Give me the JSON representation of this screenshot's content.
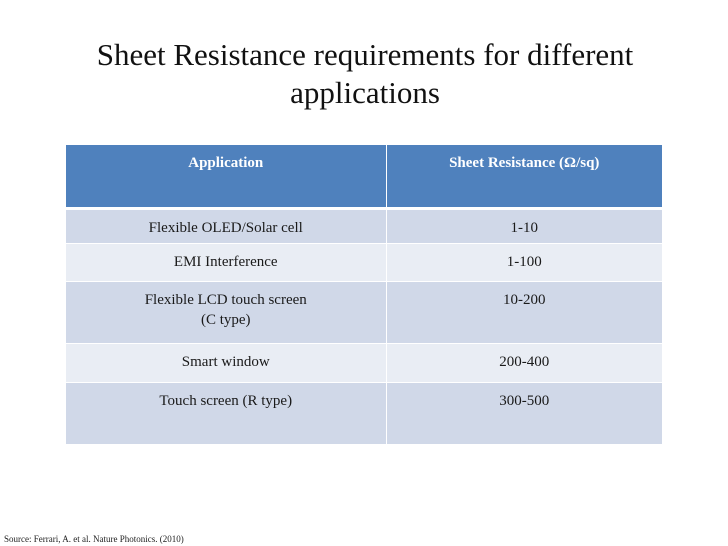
{
  "slide": {
    "title_lines": [
      "Sheet Resistance requirements for different",
      "applications"
    ]
  },
  "table": {
    "headers": [
      "Application",
      "Sheet Resistance (Ω/sq)"
    ],
    "rows": [
      {
        "application": [
          "Flexible OLED/Solar cell"
        ],
        "resistance": "1-10"
      },
      {
        "application": [
          "EMI Interference"
        ],
        "resistance": "1-100"
      },
      {
        "application": [
          "Flexible LCD touch screen",
          "(C type)"
        ],
        "resistance": "10-200"
      },
      {
        "application": [
          "Smart window"
        ],
        "resistance": "200-400"
      },
      {
        "application": [
          "Touch screen (R type)"
        ],
        "resistance": "300-500"
      }
    ],
    "colors": {
      "header": "#4f81bd",
      "row_dark": "#d0d8e8",
      "row_light": "#e9edf4"
    }
  },
  "source": "Source: Ferrari, A. et al. Nature Photonics. (2010)"
}
